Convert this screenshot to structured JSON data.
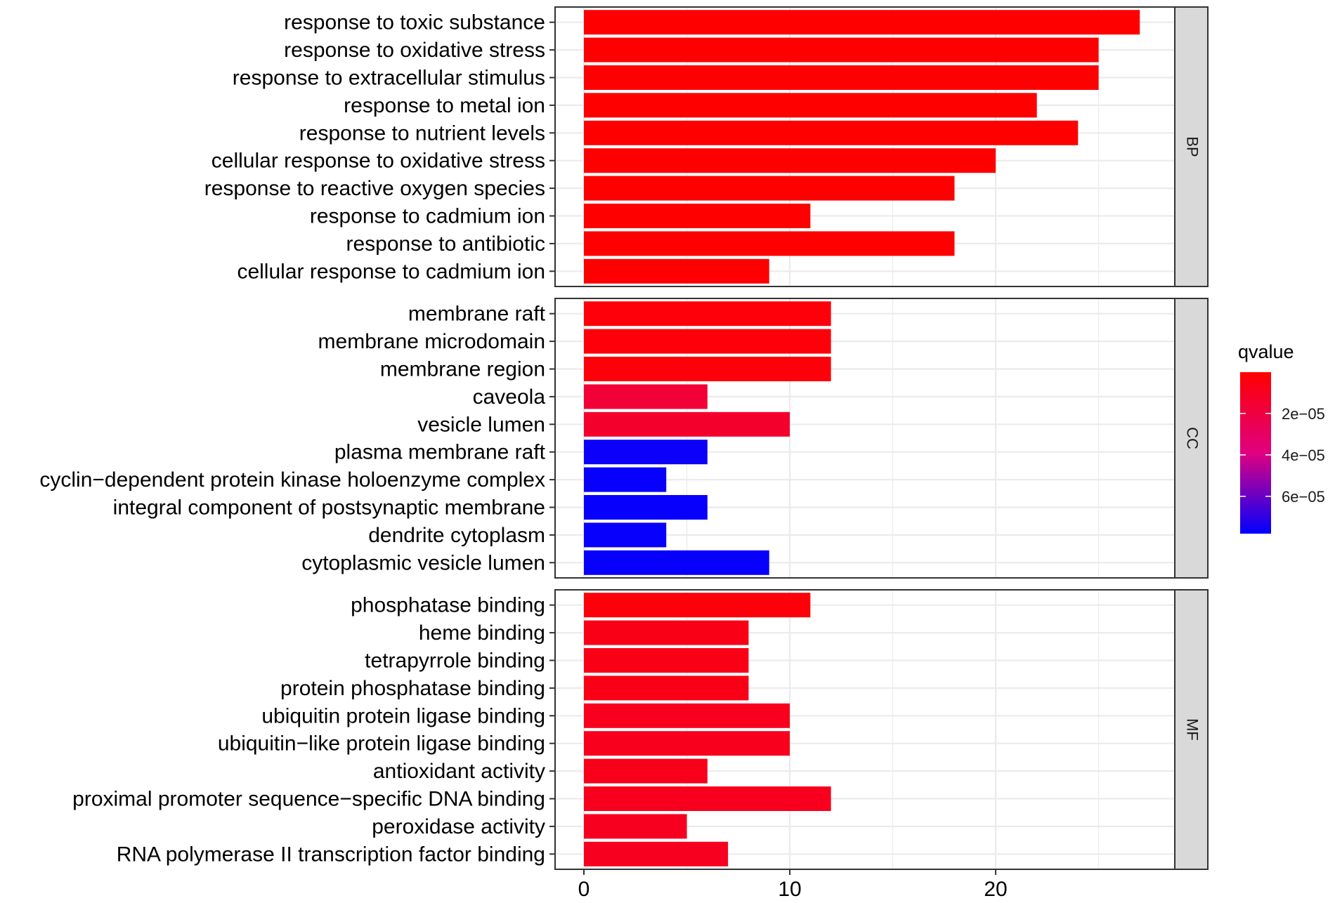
{
  "chart_data": {
    "type": "bar",
    "orientation": "horizontal",
    "faceted": true,
    "xlabel": "",
    "ylabel": "",
    "xlim": [
      -1.4,
      28.7
    ],
    "x_ticks": [
      0,
      10,
      20
    ],
    "x_tick_labels": [
      "0",
      "10",
      "20"
    ],
    "grid": true,
    "legend": {
      "title": "qvalue",
      "placement": "right",
      "range": [
        1e-07,
        7.8e-05
      ],
      "ticks": [
        {
          "value": 2e-05,
          "label": "2e−05"
        },
        {
          "value": 4e-05,
          "label": "4e−05"
        },
        {
          "value": 6e-05,
          "label": "6e−05"
        }
      ],
      "low_color": "#FF0000",
      "high_color": "#0000FF"
    },
    "panels": [
      {
        "strip": "BP",
        "categories": [
          "response to toxic substance",
          "response to oxidative stress",
          "response to extracellular stimulus",
          "response to metal ion",
          "response to nutrient levels",
          "cellular response to oxidative stress",
          "response to reactive oxygen species",
          "response to cadmium ion",
          "response to antibiotic",
          "cellular response to cadmium ion"
        ],
        "values": [
          27,
          25,
          25,
          22,
          24,
          20,
          18,
          11,
          18,
          9
        ],
        "qvalues": [
          1e-07,
          1e-07,
          1e-07,
          1e-07,
          1e-07,
          1e-07,
          1e-07,
          1e-07,
          1e-07,
          1e-07
        ]
      },
      {
        "strip": "CC",
        "categories": [
          "membrane raft",
          "membrane microdomain",
          "membrane region",
          "caveola",
          "vesicle lumen",
          "plasma membrane raft",
          "cyclin−dependent protein kinase holoenzyme complex",
          "integral component of postsynaptic membrane",
          "dendrite cytoplasm",
          "cytoplasmic vesicle lumen"
        ],
        "values": [
          12,
          12,
          12,
          6,
          10,
          6,
          4,
          6,
          4,
          9
        ],
        "qvalues": [
          3e-06,
          3e-06,
          3e-06,
          1.7e-05,
          1.4e-05,
          7.6e-05,
          7.7e-05,
          7.7e-05,
          7.7e-05,
          7.7e-05
        ]
      },
      {
        "strip": "MF",
        "categories": [
          "phosphatase binding",
          "heme binding",
          "tetrapyrrole binding",
          "protein phosphatase binding",
          "ubiquitin protein ligase binding",
          "ubiquitin−like protein ligase binding",
          "antioxidant activity",
          "proximal promoter sequence−specific DNA binding",
          "peroxidase activity",
          "RNA polymerase II transcription factor binding"
        ],
        "values": [
          11,
          8,
          8,
          8,
          10,
          10,
          6,
          12,
          5,
          7
        ],
        "qvalues": [
          3e-06,
          7e-06,
          7e-06,
          7e-06,
          9e-06,
          9e-06,
          8e-06,
          9e-06,
          1e-05,
          1e-05
        ]
      }
    ]
  }
}
